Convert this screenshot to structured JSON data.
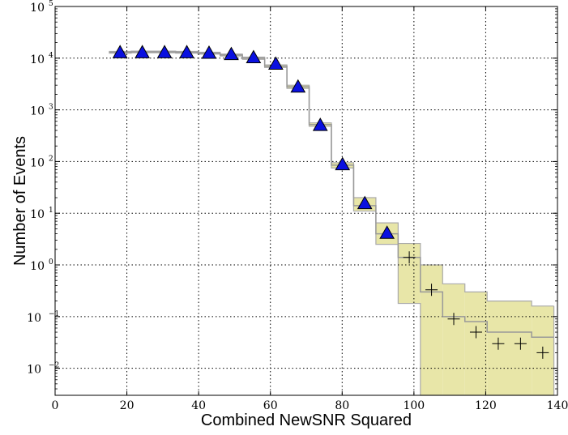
{
  "chart_data": {
    "type": "scatter",
    "title": "",
    "xlabel": "Combined NewSNR Squared",
    "ylabel": "Number of Events",
    "xlim": [
      0,
      140
    ],
    "ylim": [
      0.003,
      100000
    ],
    "yscale": "log",
    "grid": true,
    "x_ticks": [
      {
        "value": 0,
        "label": "0"
      },
      {
        "value": 20,
        "label": "20"
      },
      {
        "value": 40,
        "label": "40"
      },
      {
        "value": 60,
        "label": "60"
      },
      {
        "value": 80,
        "label": "80"
      },
      {
        "value": 100,
        "label": "100"
      },
      {
        "value": 120,
        "label": "120"
      },
      {
        "value": 140,
        "label": "140"
      }
    ],
    "y_ticks": [
      {
        "value": 0.01,
        "base": "10",
        "exp": "−2"
      },
      {
        "value": 0.1,
        "base": "10",
        "exp": "−1"
      },
      {
        "value": 1,
        "base": "10",
        "exp": "0"
      },
      {
        "value": 10,
        "base": "10",
        "exp": "1"
      },
      {
        "value": 100,
        "base": "10",
        "exp": "2"
      },
      {
        "value": 1000,
        "base": "10",
        "exp": "3"
      },
      {
        "value": 10000,
        "base": "10",
        "exp": "4"
      },
      {
        "value": 100000,
        "base": "10",
        "exp": "5"
      }
    ],
    "colors": {
      "background_band": "#e8e6a8",
      "band_edge": "#aaaaaa",
      "background_line": "#999999",
      "foreground_marker": "#0a10e0"
    },
    "background_bins": [
      {
        "x0": 15.0,
        "x1": 21.2,
        "mean": 13000,
        "lo": 12500,
        "hi": 13500
      },
      {
        "x0": 21.2,
        "x1": 27.4,
        "mean": 13200,
        "lo": 12700,
        "hi": 13700
      },
      {
        "x0": 27.4,
        "x1": 33.6,
        "mean": 13200,
        "lo": 12700,
        "hi": 13700
      },
      {
        "x0": 33.6,
        "x1": 39.8,
        "mean": 13000,
        "lo": 12500,
        "hi": 13500
      },
      {
        "x0": 39.8,
        "x1": 46.0,
        "mean": 12500,
        "lo": 12000,
        "hi": 13000
      },
      {
        "x0": 46.0,
        "x1": 52.2,
        "mean": 11500,
        "lo": 11000,
        "hi": 12000
      },
      {
        "x0": 52.2,
        "x1": 58.4,
        "mean": 10000,
        "lo": 9500,
        "hi": 10500
      },
      {
        "x0": 58.4,
        "x1": 64.6,
        "mean": 7000,
        "lo": 6600,
        "hi": 7400
      },
      {
        "x0": 64.6,
        "x1": 70.8,
        "mean": 2800,
        "lo": 2600,
        "hi": 3000
      },
      {
        "x0": 70.8,
        "x1": 77.0,
        "mean": 520,
        "lo": 480,
        "hi": 560
      },
      {
        "x0": 77.0,
        "x1": 83.2,
        "mean": 85,
        "lo": 75,
        "hi": 95
      },
      {
        "x0": 83.2,
        "x1": 89.4,
        "mean": 14,
        "lo": 11,
        "hi": 20
      },
      {
        "x0": 89.4,
        "x1": 95.6,
        "mean": 4,
        "lo": 2.5,
        "hi": 6.5
      },
      {
        "x0": 95.6,
        "x1": 101.8,
        "mean": 1.4,
        "lo": 0.18,
        "hi": 2.6
      },
      {
        "x0": 101.8,
        "x1": 108.0,
        "mean": 0.3,
        "lo": 0.001,
        "hi": 1.0
      },
      {
        "x0": 108.0,
        "x1": 114.2,
        "mean": 0.1,
        "lo": 0.001,
        "hi": 0.43
      },
      {
        "x0": 114.2,
        "x1": 120.4,
        "mean": 0.08,
        "lo": 0.001,
        "hi": 0.3
      },
      {
        "x0": 120.4,
        "x1": 132.8,
        "mean": 0.05,
        "lo": 0.001,
        "hi": 0.2
      },
      {
        "x0": 132.8,
        "x1": 139.0,
        "mean": 0.04,
        "lo": 0.001,
        "hi": 0.16
      }
    ],
    "series": [
      {
        "marker": "triangle",
        "x": [
          18.1,
          24.3,
          30.5,
          36.7,
          42.9,
          49.1,
          55.3,
          61.5,
          67.7,
          73.9,
          80.1,
          86.3,
          92.5
        ],
        "y": [
          12500,
          12500,
          12500,
          12500,
          12200,
          11500,
          10000,
          7500,
          2700,
          490,
          85,
          15,
          4
        ]
      },
      {
        "marker": "plus",
        "x": [
          98.7,
          104.9,
          111.1,
          117.3,
          123.5,
          129.7,
          135.9
        ],
        "y": [
          1.4,
          0.33,
          0.09,
          0.05,
          0.03,
          0.03,
          0.02
        ]
      }
    ]
  }
}
